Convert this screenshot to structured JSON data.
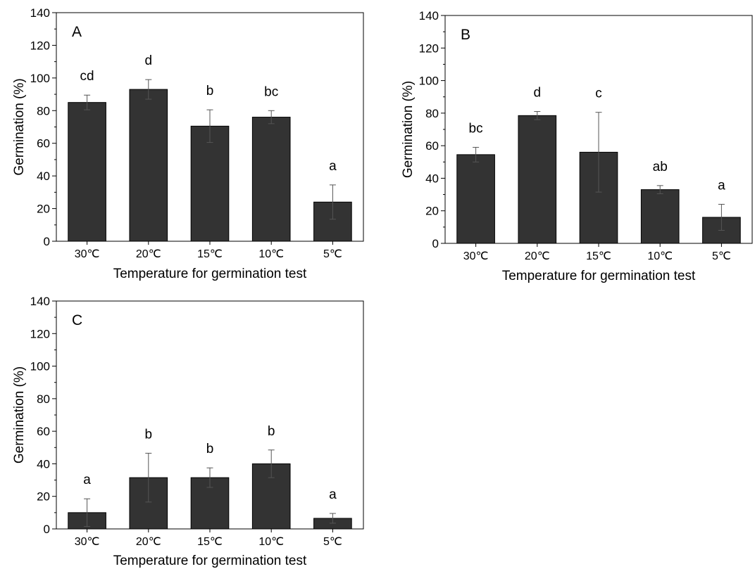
{
  "chart_data": [
    {
      "type": "bar",
      "panel_label": "A",
      "xlabel": "Temperature for germination test",
      "ylabel": "Germination (%)",
      "ylim": [
        0,
        140
      ],
      "yticks": [
        0,
        20,
        40,
        60,
        80,
        100,
        120,
        140
      ],
      "categories": [
        "30℃",
        "20℃",
        "15℃",
        "10℃",
        "5℃"
      ],
      "values": [
        85,
        93,
        70.5,
        76,
        24
      ],
      "errors": [
        4.5,
        6,
        10,
        4,
        10.5
      ],
      "letters": [
        "cd",
        "d",
        "b",
        "bc",
        "a"
      ],
      "bar_color": "#333333"
    },
    {
      "type": "bar",
      "panel_label": "B",
      "xlabel": "Temperature for germination test",
      "ylabel": "Germination (%)",
      "ylim": [
        0,
        140
      ],
      "yticks": [
        0,
        20,
        40,
        60,
        80,
        100,
        120,
        140
      ],
      "categories": [
        "30℃",
        "20℃",
        "15℃",
        "10℃",
        "5℃"
      ],
      "values": [
        54.5,
        78.5,
        56,
        33,
        16
      ],
      "errors": [
        4.5,
        2.5,
        24.5,
        2.5,
        8
      ],
      "letters": [
        "bc",
        "d",
        "c",
        "ab",
        "a"
      ],
      "bar_color": "#333333"
    },
    {
      "type": "bar",
      "panel_label": "C",
      "xlabel": "Temperature for germination test",
      "ylabel": "Germination (%)",
      "ylim": [
        0,
        140
      ],
      "yticks": [
        0,
        20,
        40,
        60,
        80,
        100,
        120,
        140
      ],
      "categories": [
        "30℃",
        "20℃",
        "15℃",
        "10℃",
        "5℃"
      ],
      "values": [
        10,
        31.5,
        31.5,
        40,
        6.5
      ],
      "errors": [
        8.5,
        15,
        6,
        8.5,
        3
      ],
      "letters": [
        "a",
        "b",
        "b",
        "b",
        "a"
      ],
      "bar_color": "#333333"
    }
  ]
}
